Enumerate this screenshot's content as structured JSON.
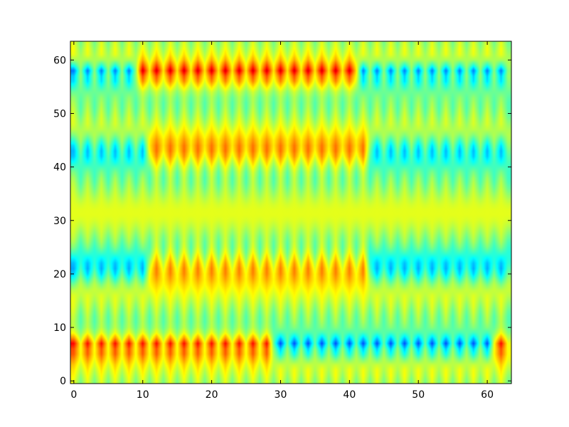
{
  "chart_data": {
    "type": "heatmap",
    "title": "",
    "xlabel": "",
    "ylabel": "",
    "shape": [
      64,
      64
    ],
    "interpolation": "bilinear",
    "colormap": "jet",
    "value_range": [
      -1,
      1
    ],
    "xlim": [
      -0.5,
      63.5
    ],
    "ylim": [
      63.5,
      -0.5
    ],
    "x_ticks": [
      0,
      10,
      20,
      30,
      40,
      50,
      60
    ],
    "y_ticks": [
      0,
      10,
      20,
      30,
      40,
      50,
      60
    ],
    "x_tick_labels": [
      "0",
      "10",
      "20",
      "30",
      "40",
      "50",
      "60"
    ],
    "y_tick_labels": [
      "0",
      "10",
      "20",
      "30",
      "40",
      "50",
      "60"
    ],
    "background_value": 0.1,
    "bands": [
      {
        "row": 6,
        "amp": 0.85,
        "phase_shift": 36,
        "pattern": "dipole"
      },
      {
        "row": 21,
        "amp": 0.55,
        "phase_shift": 22,
        "pattern": "blue-cluster"
      },
      {
        "row": 43,
        "amp": 0.55,
        "phase_shift": 22,
        "pattern": "blue-cluster"
      },
      {
        "row": 57,
        "amp": 0.85,
        "phase_shift": 23,
        "pattern": "dipole"
      }
    ]
  }
}
